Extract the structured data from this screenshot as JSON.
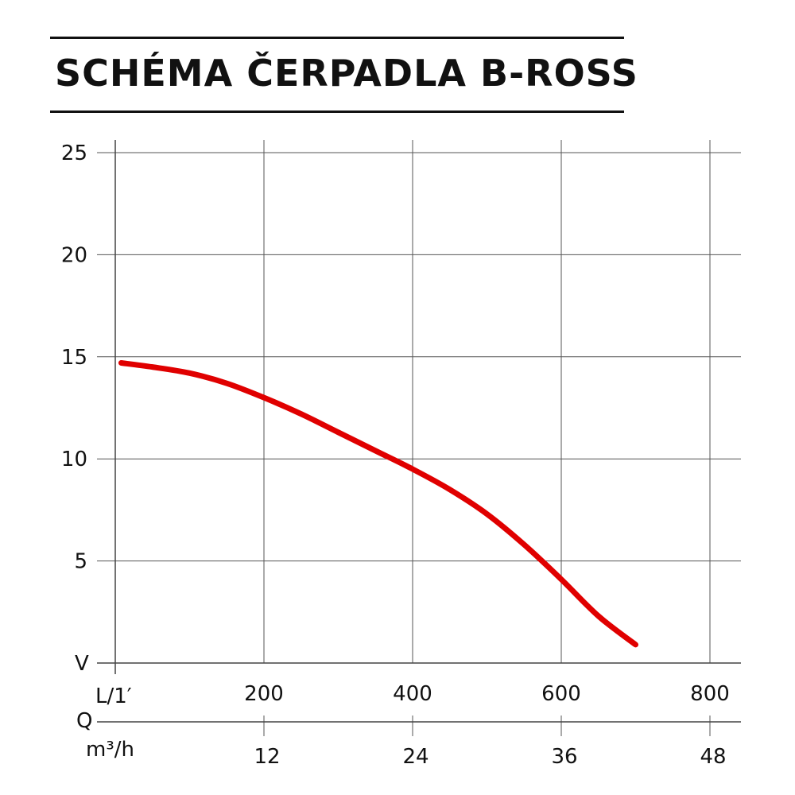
{
  "chart_data": {
    "type": "line",
    "title": "SCHÉMA ČERPADLA B-ROSS",
    "ylabel": "V",
    "xlabel_primary": "L/1′",
    "xlabel_secondary_q": "Q",
    "xlabel_secondary_unit": "m³/h",
    "yticks": [
      5,
      10,
      15,
      20,
      25
    ],
    "ytick_labels": [
      "5",
      "10",
      "15",
      "20",
      "25"
    ],
    "xticks": [
      200,
      400,
      600,
      800
    ],
    "xtick_labels": [
      "200",
      "400",
      "600",
      "800"
    ],
    "x2_tick_labels": [
      "12",
      "24",
      "36",
      "48"
    ],
    "xlim": [
      0,
      840
    ],
    "ylim": [
      0,
      25.5
    ],
    "grid": true,
    "series": [
      {
        "color": "#e00000",
        "x": [
          8,
          50,
          100,
          150,
          200,
          250,
          300,
          350,
          400,
          450,
          500,
          550,
          600,
          650,
          700
        ],
        "y": [
          14.7,
          14.5,
          14.2,
          13.7,
          13.0,
          12.2,
          11.3,
          10.4,
          9.5,
          8.5,
          7.3,
          5.8,
          4.1,
          2.3,
          0.9
        ]
      }
    ]
  }
}
